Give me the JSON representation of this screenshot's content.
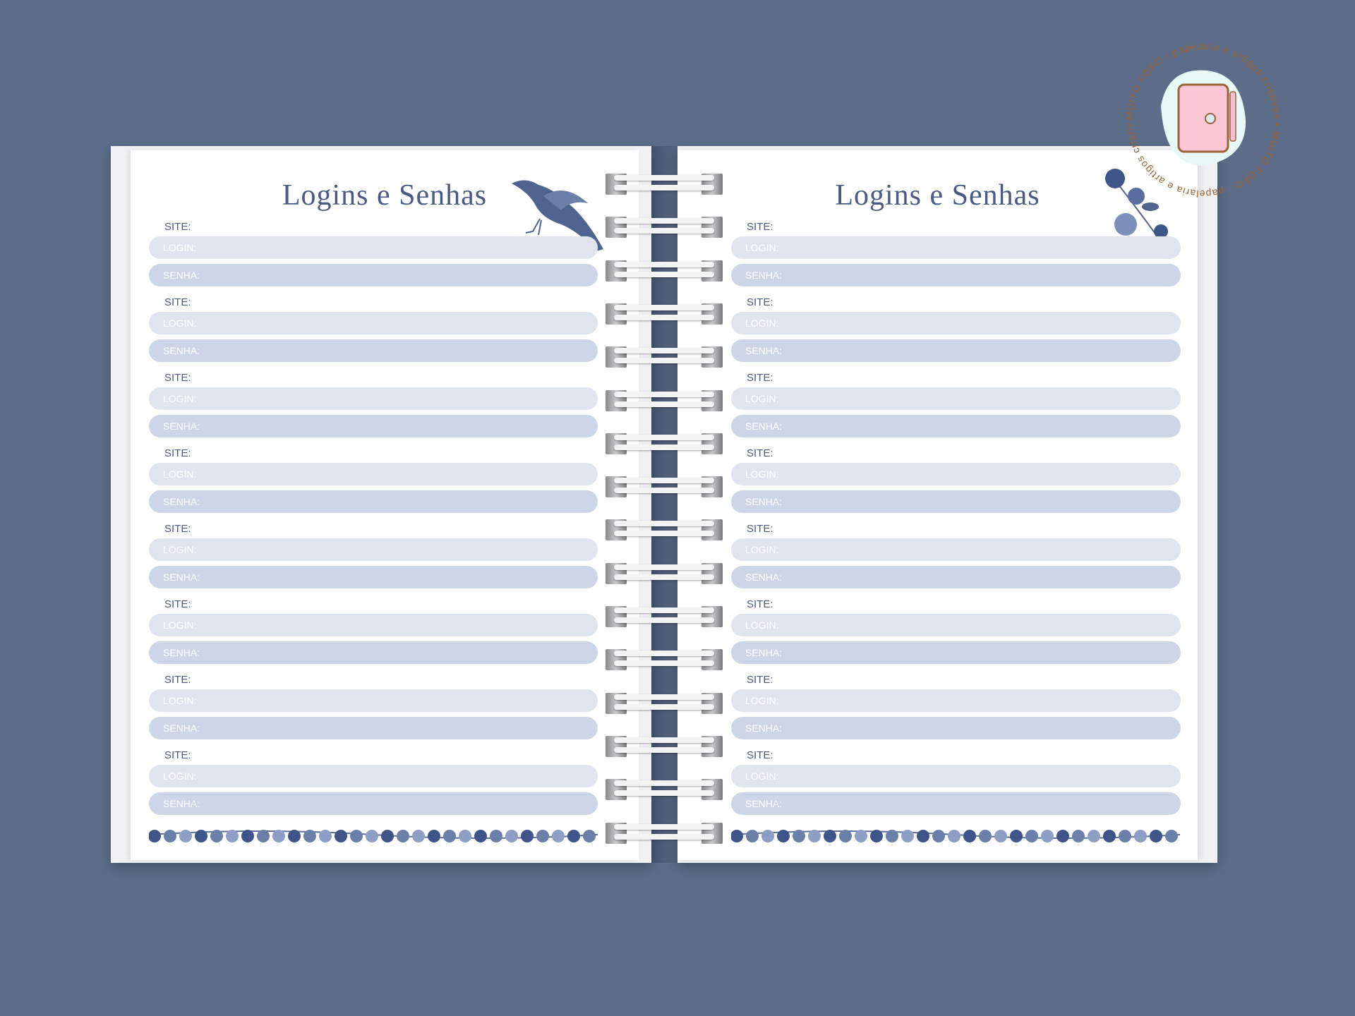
{
  "pages": [
    {
      "title": "Logins e Senhas",
      "decoration": "bird-illustration"
    },
    {
      "title": "Logins e Senhas",
      "decoration": "blue-flower-illustration"
    }
  ],
  "labels": {
    "site": "SITE:",
    "login": "LOGIN:",
    "senha": "SENHA:"
  },
  "entries_per_page": 8,
  "spiral_rings": 16,
  "logo": {
    "text": "MUITO FOFO - papelaria e artigos criativos",
    "icon": "planner-notebook-icon"
  },
  "colors": {
    "background": "#5d6c88",
    "title": "#4b5a85",
    "login_bar": "#e0e4ef",
    "senha_bar": "#cdd5e8"
  }
}
